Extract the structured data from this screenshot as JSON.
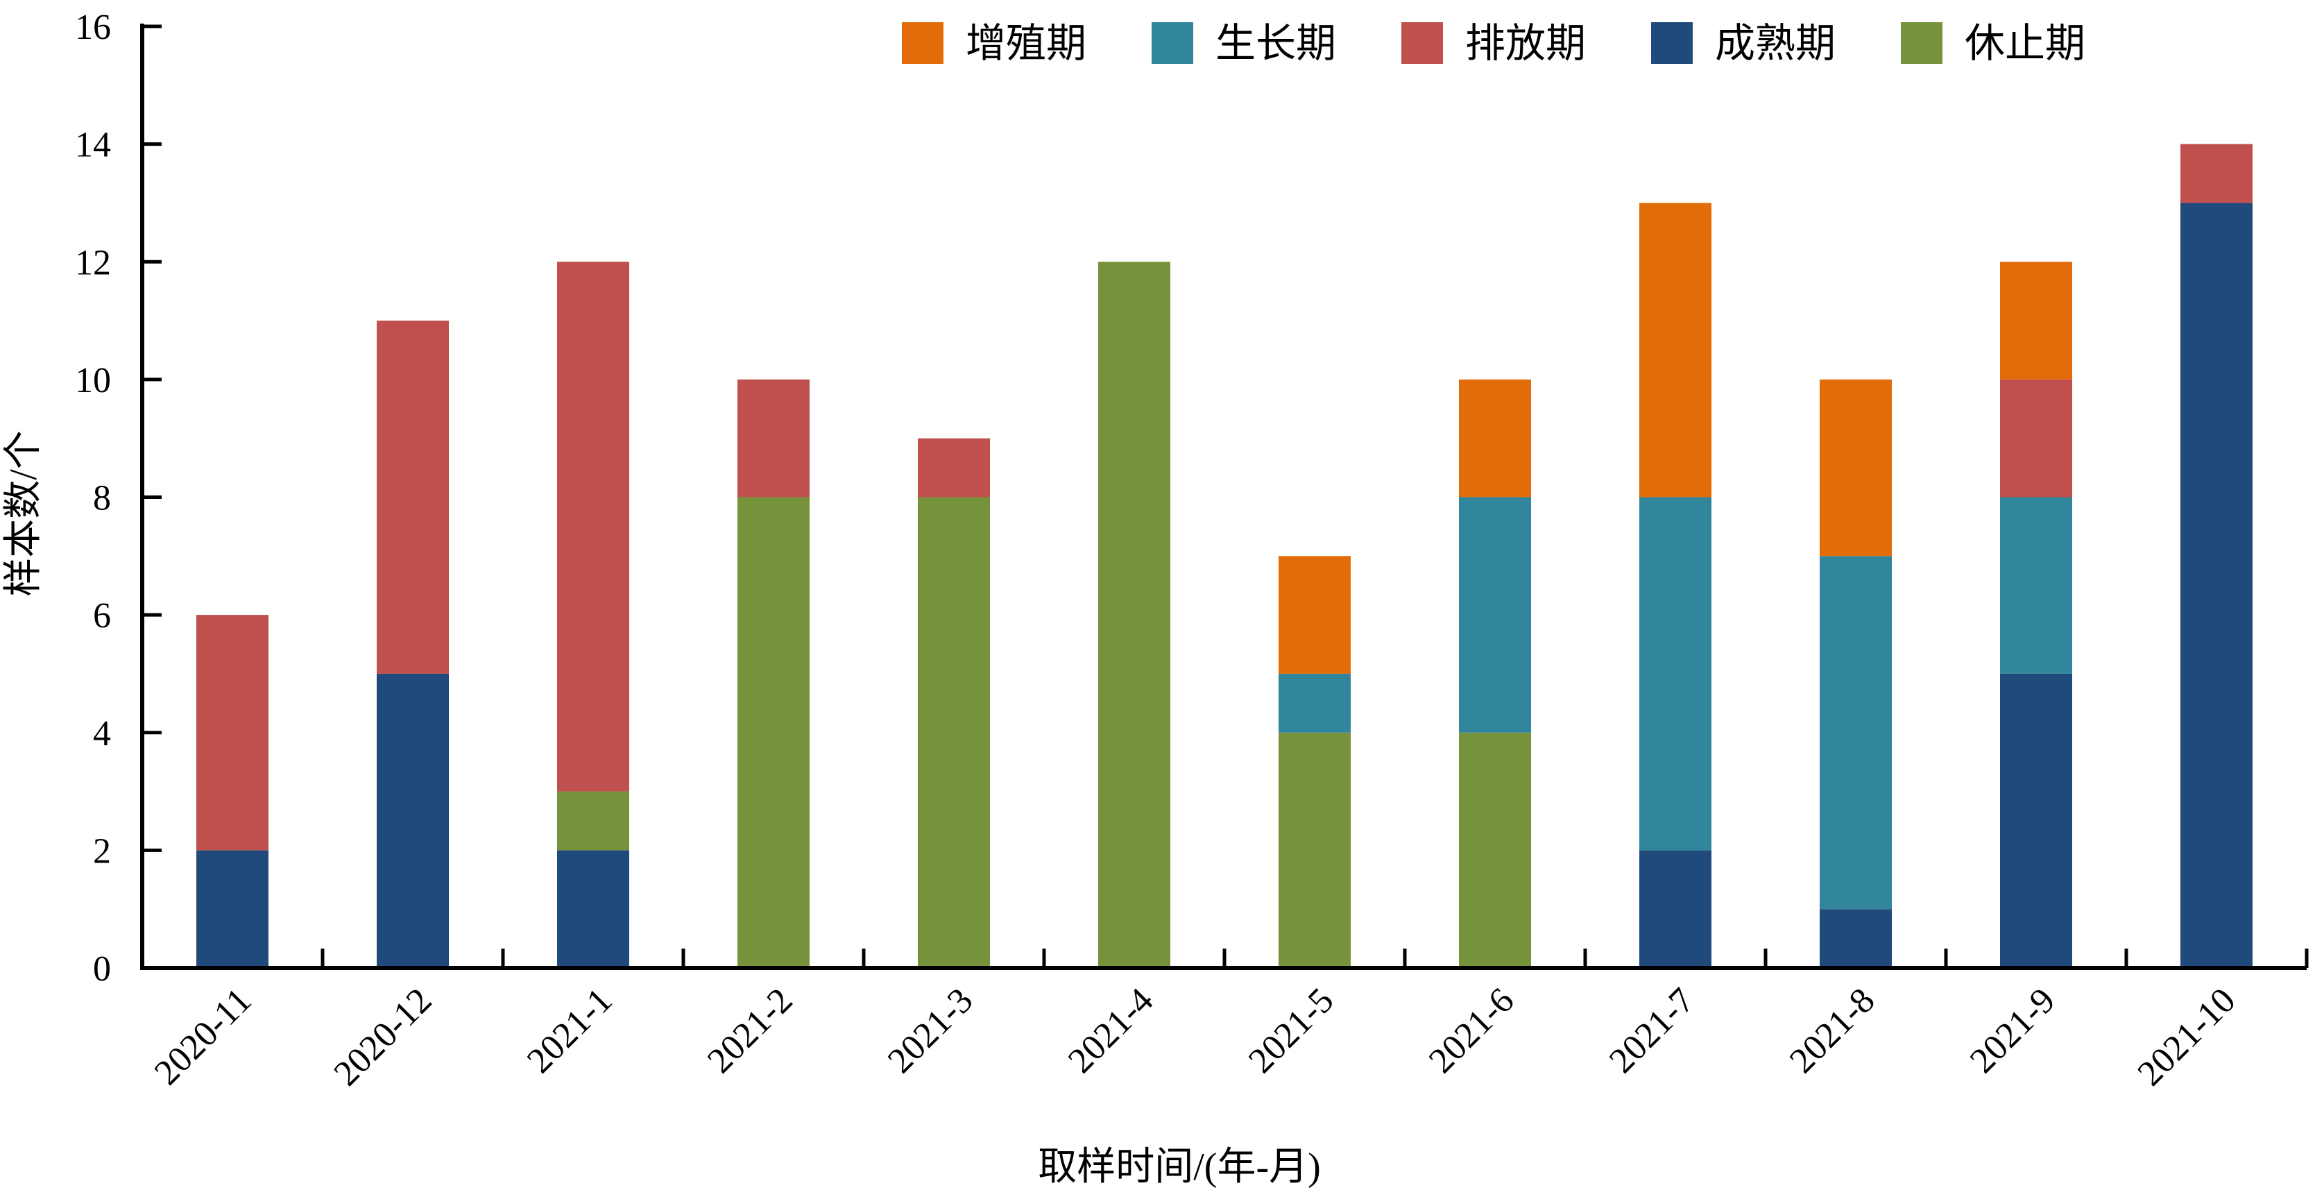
{
  "chart_data": {
    "type": "bar",
    "stacked": true,
    "title": "",
    "xlabel": "取样时间/(年-月)",
    "ylabel": "样本数/个",
    "ylim": [
      0,
      16
    ],
    "yticks": [
      0,
      2,
      4,
      6,
      8,
      10,
      12,
      14,
      16
    ],
    "grid": false,
    "legend_position": "top",
    "categories": [
      "2020-11",
      "2020-12",
      "2021-1",
      "2021-2",
      "2021-3",
      "2021-4",
      "2021-5",
      "2021-6",
      "2021-7",
      "2021-8",
      "2021-9",
      "2021-10"
    ],
    "series": [
      {
        "name": "成熟期",
        "color": "#204a7b",
        "values": [
          2,
          5,
          2,
          0,
          0,
          0,
          0,
          0,
          2,
          1,
          5,
          13
        ]
      },
      {
        "name": "休止期",
        "color": "#76933c",
        "values": [
          0,
          0,
          1,
          8,
          8,
          12,
          4,
          4,
          0,
          0,
          0,
          0
        ]
      },
      {
        "name": "生长期",
        "color": "#31869b",
        "values": [
          0,
          0,
          0,
          0,
          0,
          0,
          1,
          4,
          6,
          6,
          3,
          0
        ]
      },
      {
        "name": "排放期",
        "color": "#c0504d",
        "values": [
          4,
          6,
          9,
          2,
          1,
          0,
          0,
          0,
          0,
          0,
          2,
          1
        ]
      },
      {
        "name": "增殖期",
        "color": "#e36c0a",
        "values": [
          0,
          0,
          0,
          0,
          0,
          0,
          2,
          2,
          5,
          3,
          2,
          0
        ]
      }
    ],
    "legend_order": [
      "增殖期",
      "生长期",
      "排放期",
      "成熟期",
      "休止期"
    ]
  }
}
